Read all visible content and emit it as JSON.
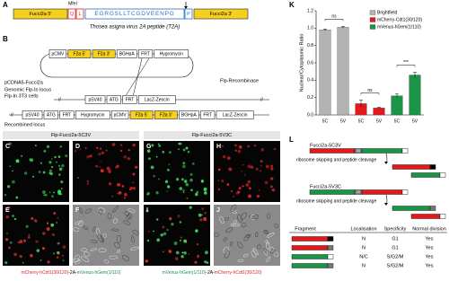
{
  "panel_a": {
    "label": "A",
    "left": "Fucci2a 5'",
    "site": "MfeI",
    "residues": [
      "Q",
      "L",
      "EGRGSLLTCGDVEENPG",
      "P"
    ],
    "right": "Fucci2a 3'",
    "caption": "Thosea asigna virus 2A peptide (T2A)"
  },
  "panel_b": {
    "label": "B",
    "plasmid": {
      "elements": [
        "pCMV",
        "F2a 5'",
        "F2a 3'",
        "BGHpA",
        "FRT",
        "Hygromycin"
      ],
      "name": "pCDNA5-Fucci2a"
    },
    "recombinase": "Flp-Recombinase",
    "genomic": {
      "name": "Genomic Flp-In locus",
      "cells": "Flp-In 3T3 cells",
      "elements": [
        "pSV40",
        "ATG",
        "FRT",
        "LacZ-Zeocin"
      ]
    },
    "recombined": {
      "name": "Recombined locus",
      "elements": [
        "pSV40",
        "ATG",
        "FRT",
        "Hygromycin",
        "pCMV",
        "F2a 5'",
        "F2a 3'",
        "BGHpA",
        "FRT",
        "LacZ-Zeocin"
      ]
    }
  },
  "panel_images": {
    "groups": [
      {
        "title": "Flp-Fucci2a-5C3V",
        "labels": [
          "C",
          "D",
          "E",
          "F"
        ],
        "caption": [
          "mCherry-hCdt1(30/120)",
          "-2A-",
          "mVenus-hGem(1/110)"
        ]
      },
      {
        "title": "Flp-Fucci2a-5V3C",
        "labels": [
          "G",
          "H",
          "I",
          "J"
        ],
        "caption": [
          "mVenus-hGem(1/110)",
          "-2A-",
          "mCherry-hCdt1(30/120)"
        ]
      }
    ]
  },
  "chart_data": {
    "type": "bar",
    "panel_label": "K",
    "y_label": "Nuclear/Cytoplasmic Ratio",
    "categories": [
      "5C",
      "5V",
      "5C",
      "5V",
      "5C",
      "5V"
    ],
    "series": [
      {
        "name": "Brightfield",
        "color": "#b3b3b3",
        "values": [
          0.98,
          1.01,
          null,
          null,
          null,
          null
        ],
        "errors": [
          0.01,
          0.01,
          null,
          null,
          null,
          null
        ]
      },
      {
        "name": "mCherry-Cdt1(30/120)",
        "color": "#e3191c",
        "values": [
          null,
          null,
          0.13,
          0.08,
          null,
          null
        ],
        "errors": [
          null,
          null,
          0.04,
          0.01,
          null,
          null
        ]
      },
      {
        "name": "mVenus-hGem(1/110)",
        "color": "#1a9447",
        "values": [
          null,
          null,
          null,
          null,
          0.22,
          0.46
        ],
        "errors": [
          null,
          null,
          null,
          null,
          0.02,
          0.03
        ]
      }
    ],
    "ylim": [
      0,
      1.2
    ],
    "yticks": [
      {
        "value": 0,
        "label": "0.0"
      },
      0.2,
      0.4,
      0.6,
      0.8,
      {
        "value": 1,
        "label": "1.0"
      },
      1.2
    ],
    "annotations": [
      "ns",
      "ns",
      "***"
    ],
    "legend": "top-right"
  },
  "panel_l": {
    "label": "L",
    "constructs": [
      {
        "name": "Fucci2a-5C3V",
        "linker": "2A",
        "step": "ribosome skipping and peptide cleavage"
      },
      {
        "name": "Fucci2a-5V3C",
        "linker": "2A",
        "step": "ribosome skipping and peptide cleavage"
      }
    ],
    "table": {
      "header": [
        "Fragment",
        "Localisation",
        "Specificity",
        "Normal division"
      ],
      "rows": [
        [
          "N",
          "G1",
          "Yes"
        ],
        [
          "N",
          "G1",
          "Yes"
        ],
        [
          "N/C",
          "S/G2/M",
          "Yes"
        ],
        [
          "N",
          "S/G2/M",
          "Yes"
        ]
      ]
    }
  }
}
